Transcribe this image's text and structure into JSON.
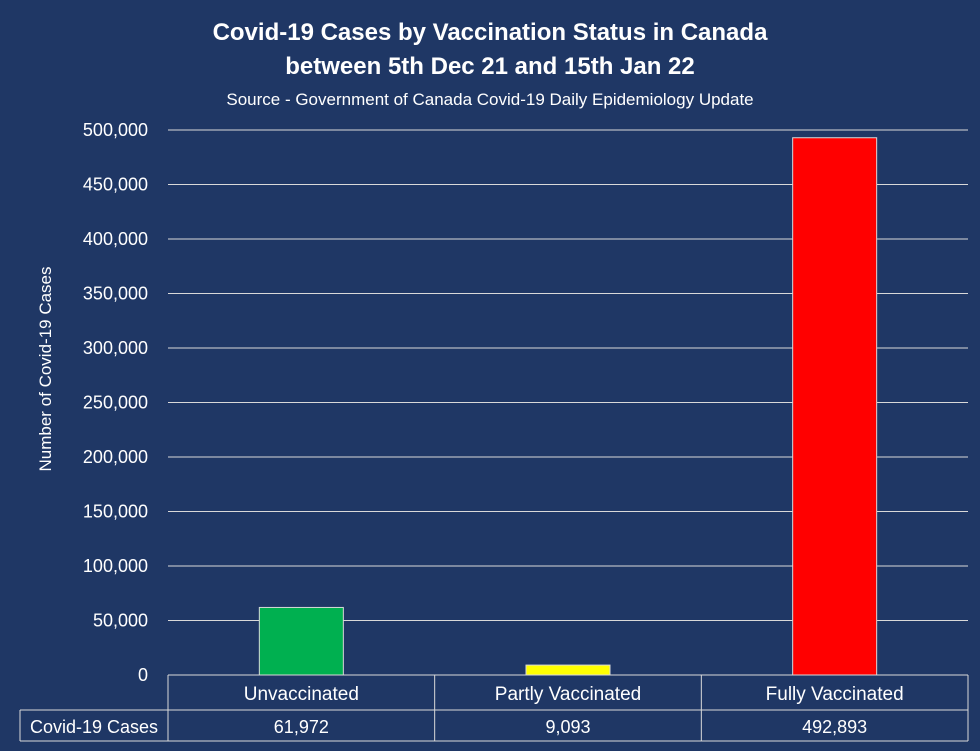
{
  "chart_data": {
    "type": "bar",
    "title": "Covid-19 Cases by Vaccination Status in Canada",
    "title_line2": "between 5th Dec 21 and 15th Jan 22",
    "subtitle": "Source - Government of Canada Covid-19 Daily Epidemiology Update",
    "ylabel": "Number of Covid-19 Cases",
    "xlabel": "",
    "ylim": [
      0,
      500000
    ],
    "yticks": [
      0,
      50000,
      100000,
      150000,
      200000,
      250000,
      300000,
      350000,
      400000,
      450000,
      500000
    ],
    "ytick_labels": [
      "0",
      "50,000",
      "100,000",
      "150,000",
      "200,000",
      "250,000",
      "300,000",
      "350,000",
      "400,000",
      "450,000",
      "500,000"
    ],
    "categories": [
      "Unvaccinated",
      "Partly Vaccinated",
      "Fully Vaccinated"
    ],
    "series": [
      {
        "name": "Covid-19 Cases",
        "values": [
          61972,
          9093,
          492893
        ],
        "value_labels": [
          "61,972",
          "9,093",
          "492,893"
        ],
        "colors": [
          "#00b050",
          "#ffff00",
          "#ff0000"
        ]
      }
    ],
    "data_table": true,
    "grid": true,
    "legend": "none",
    "colors": {
      "background": "#1f3765",
      "gridline": "#d9d9d9",
      "text": "#ffffff"
    }
  }
}
